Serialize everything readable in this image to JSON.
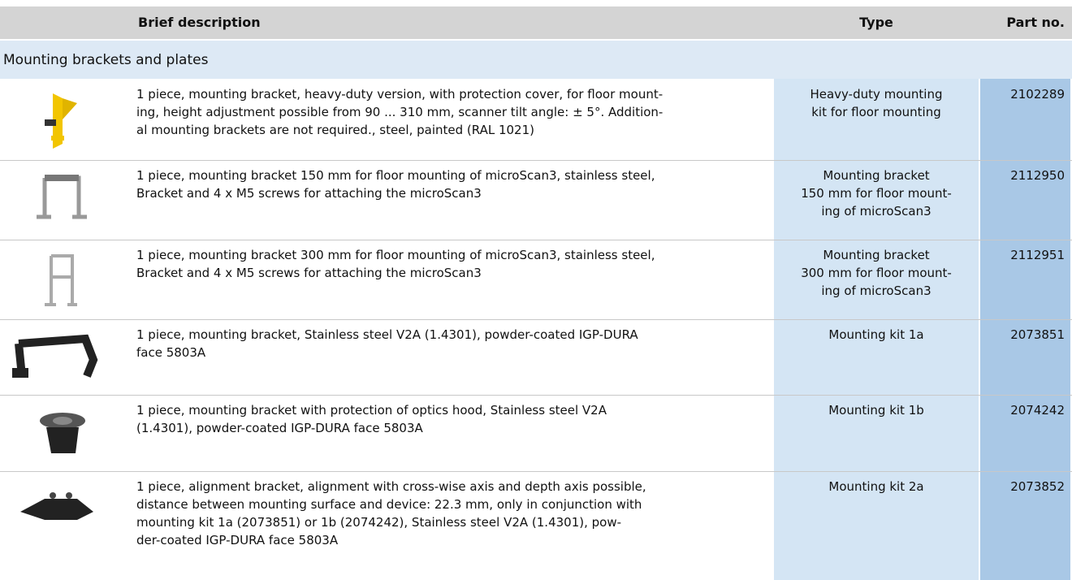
{
  "header": {
    "description": "Brief description",
    "type": "Type",
    "part_no": "Part no."
  },
  "section": "Mounting brackets and plates",
  "rows": [
    {
      "description": [
        "1 piece, mounting bracket, heavy-duty version, with protection cover, for floor mount-",
        "ing, height adjustment possible from 90 ... 310 mm, scanner tilt angle: ± 5°. Addition-",
        "al mounting brackets are not required., steel, painted (RAL 1021)"
      ],
      "type": [
        "Heavy-duty mounting",
        "kit for floor mounting"
      ],
      "part_no": "2102289"
    },
    {
      "description": [
        "1 piece, mounting bracket 150 mm for floor mounting of microScan3, stainless steel,",
        "Bracket and 4 x M5 screws for attaching the microScan3"
      ],
      "type": [
        "Mounting bracket",
        "150 mm for floor mount-",
        "ing of microScan3"
      ],
      "part_no": "2112950"
    },
    {
      "description": [
        "1 piece, mounting bracket 300 mm for floor mounting of microScan3, stainless steel,",
        "Bracket and 4 x M5 screws for attaching the microScan3"
      ],
      "type": [
        "Mounting bracket",
        "300 mm for floor mount-",
        "ing of microScan3"
      ],
      "part_no": "2112951"
    },
    {
      "description": [
        "1 piece, mounting bracket, Stainless steel V2A (1.4301), powder-coated IGP-DURA",
        "face 5803A"
      ],
      "type": [
        "Mounting kit 1a"
      ],
      "part_no": "2073851"
    },
    {
      "description": [
        "1 piece, mounting bracket with protection of optics hood, Stainless steel V2A",
        "(1.4301), powder-coated IGP-DURA face 5803A"
      ],
      "type": [
        "Mounting kit 1b"
      ],
      "part_no": "2074242"
    },
    {
      "description": [
        "1 piece, alignment bracket, alignment with cross-wise axis and depth axis possible,",
        "distance between mounting surface and device: 22.3 mm, only in conjunction with",
        "mounting kit 1a (2073851) or 1b (2074242), Stainless steel V2A (1.4301), pow-",
        "der-coated IGP-DURA face 5803A"
      ],
      "type": [
        "Mounting kit 2a"
      ],
      "part_no": "2073852"
    }
  ]
}
